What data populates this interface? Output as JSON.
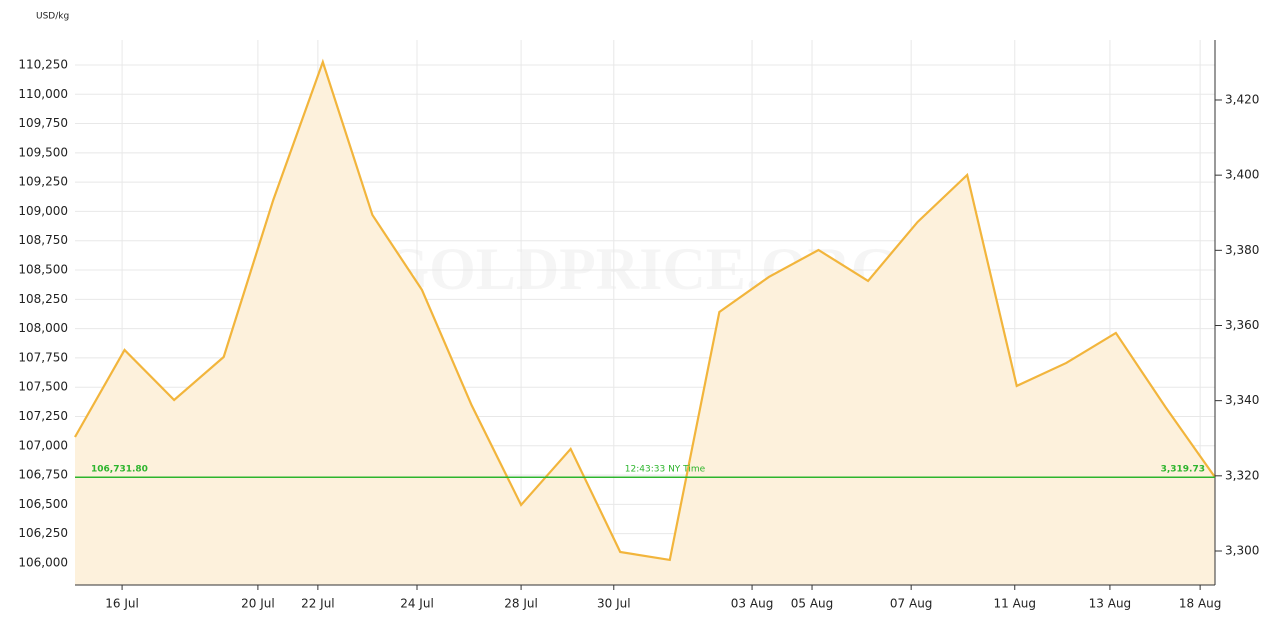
{
  "chart_data": {
    "type": "line",
    "ylabel": "USD/kg",
    "watermark": "GOLDPRICE.ORG",
    "color": "#f2b53c",
    "fill_color": "#fdf1dc",
    "values": [
      107075,
      107818,
      107391,
      107758,
      109098,
      110275,
      108970,
      108330,
      107348,
      106495,
      106973,
      106094,
      106026,
      108142,
      108441,
      108671,
      108407,
      108910,
      109311,
      107511,
      107707,
      107963,
      107331,
      106731.8
    ],
    "xlim": [
      0,
      23
    ],
    "xticks": [
      {
        "value": 0.95,
        "label": "16 Jul"
      },
      {
        "value": 3.69,
        "label": "20 Jul"
      },
      {
        "value": 4.9,
        "label": "22 Jul"
      },
      {
        "value": 6.9,
        "label": "24 Jul"
      },
      {
        "value": 9.0,
        "label": "28 Jul"
      },
      {
        "value": 10.87,
        "label": "30 Jul"
      },
      {
        "value": 13.66,
        "label": "03 Aug"
      },
      {
        "value": 14.87,
        "label": "05 Aug"
      },
      {
        "value": 16.87,
        "label": "07 Aug"
      },
      {
        "value": 18.96,
        "label": "11 Aug"
      },
      {
        "value": 20.88,
        "label": "13 Aug"
      },
      {
        "value": 22.7,
        "label": "18 Aug"
      }
    ],
    "ylim": [
      105812,
      110463
    ],
    "yticks": [
      {
        "value": 106000,
        "label": "106,000"
      },
      {
        "value": 106250,
        "label": "106,250"
      },
      {
        "value": 106500,
        "label": "106,500"
      },
      {
        "value": 106750,
        "label": "106,750"
      },
      {
        "value": 107000,
        "label": "107,000"
      },
      {
        "value": 107250,
        "label": "107,250"
      },
      {
        "value": 107500,
        "label": "107,500"
      },
      {
        "value": 107750,
        "label": "107,750"
      },
      {
        "value": 108000,
        "label": "108,000"
      },
      {
        "value": 108250,
        "label": "108,250"
      },
      {
        "value": 108500,
        "label": "108,500"
      },
      {
        "value": 108750,
        "label": "108,750"
      },
      {
        "value": 109000,
        "label": "109,000"
      },
      {
        "value": 109250,
        "label": "109,250"
      },
      {
        "value": 109500,
        "label": "109,500"
      },
      {
        "value": 109750,
        "label": "109,750"
      },
      {
        "value": 110000,
        "label": "110,000"
      },
      {
        "value": 110250,
        "label": "110,250"
      }
    ],
    "y2lim": [
      3290.95,
      3435.96
    ],
    "y2ticks": [
      {
        "value": 3300,
        "label": "3,300"
      },
      {
        "value": 3320,
        "label": "3,320"
      },
      {
        "value": 3340,
        "label": "3,340"
      },
      {
        "value": 3360,
        "label": "3,360"
      },
      {
        "value": 3380,
        "label": "3,380"
      },
      {
        "value": 3400,
        "label": "3,400"
      },
      {
        "value": 3420,
        "label": "3,420"
      }
    ],
    "grid": true,
    "current": {
      "value": 106731.8,
      "label": "106,731.80",
      "y2_value": 3319.73,
      "y2_label": "3,319.73",
      "time": "12:43:33 NY Time",
      "color": "#2db52d"
    }
  }
}
